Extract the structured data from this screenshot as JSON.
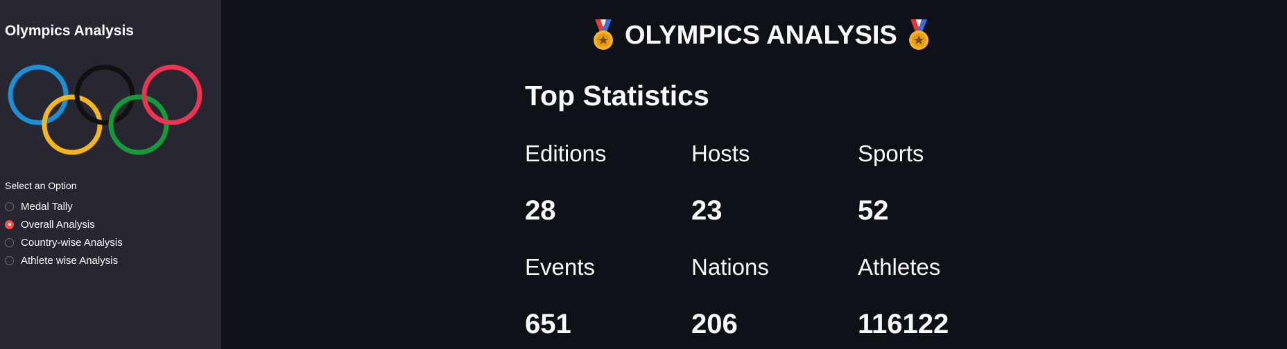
{
  "sidebar": {
    "title": "Olympics Analysis",
    "logo_icon": "olympic-rings-icon",
    "ring_colors": [
      "#0085c7",
      "#f4c300",
      "#000000",
      "#009f3d",
      "#df0024"
    ],
    "radio_label": "Select an Option",
    "options": [
      {
        "label": "Medal Tally",
        "checked": false
      },
      {
        "label": "Overall Analysis",
        "checked": true
      },
      {
        "label": "Country-wise Analysis",
        "checked": false
      },
      {
        "label": "Athlete wise Analysis",
        "checked": false
      }
    ],
    "accent_color": "#ff4b4b"
  },
  "main": {
    "title": "OLYMPICS ANALYSIS",
    "title_icon": "medal-icon",
    "heading": "Top Statistics",
    "stats": [
      {
        "label": "Editions",
        "value": "28"
      },
      {
        "label": "Hosts",
        "value": "23"
      },
      {
        "label": "Sports",
        "value": "52"
      },
      {
        "label": "Events",
        "value": "651"
      },
      {
        "label": "Nations",
        "value": "206"
      },
      {
        "label": "Athletes",
        "value": "116122"
      }
    ]
  }
}
